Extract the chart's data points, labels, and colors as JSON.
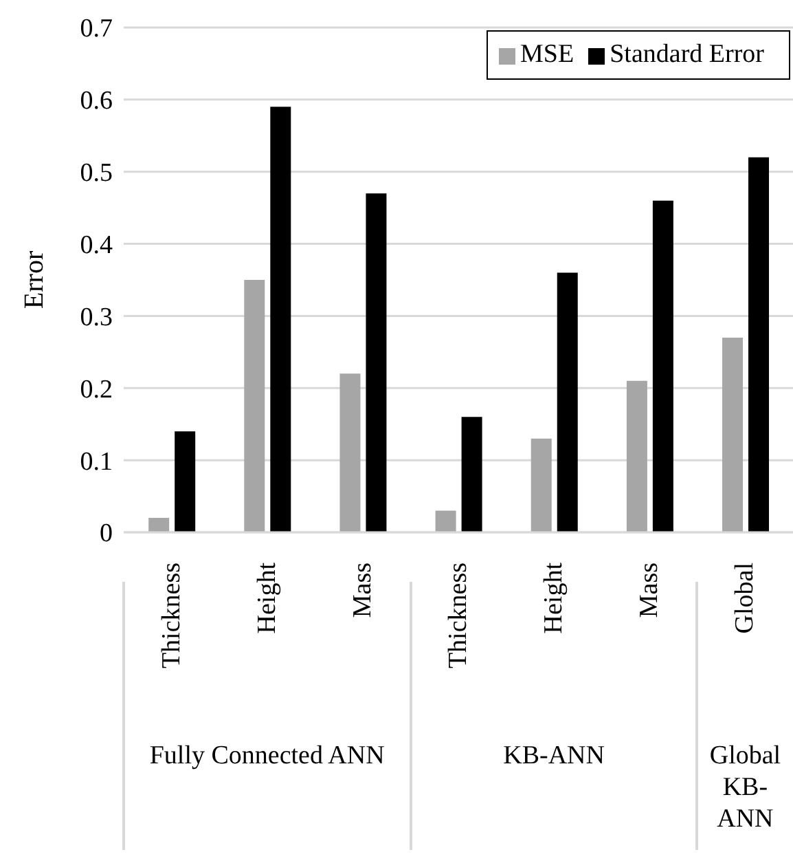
{
  "chart_data": {
    "type": "bar",
    "ylabel": "Error",
    "categories": [
      "Thickness",
      "Height",
      "Mass",
      "Thickness",
      "Height",
      "Mass",
      "Global"
    ],
    "series": [
      {
        "name": "MSE",
        "color": "#a6a6a6",
        "values": [
          0.02,
          0.35,
          0.22,
          0.03,
          0.13,
          0.21,
          0.27
        ]
      },
      {
        "name": "Standard Error",
        "color": "#000000",
        "values": [
          0.14,
          0.59,
          0.47,
          0.16,
          0.36,
          0.46,
          0.52
        ]
      }
    ],
    "ylim": [
      0,
      0.7
    ],
    "yticks": [
      0,
      0.1,
      0.2,
      0.3,
      0.4,
      0.5,
      0.6,
      0.7
    ],
    "grid": "y",
    "legend": "top right",
    "annotations": [
      "Fully Connected ANN",
      "KB-ANN",
      "Global KB-ANN"
    ]
  }
}
